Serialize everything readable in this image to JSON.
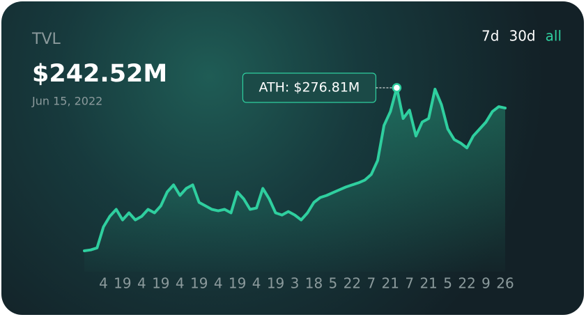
{
  "chart_data": {
    "type": "area",
    "title": "TVL",
    "current_value": "$242.52M",
    "date": "Jun 15, 2022",
    "range_options": [
      "7d",
      "30d",
      "all"
    ],
    "active_range": "all",
    "annotation": "ATH: $276.81M",
    "color": "#2fcf9f",
    "categories": [
      null,
      null,
      null,
      "4",
      null,
      null,
      "19",
      null,
      null,
      "4",
      null,
      null,
      "19",
      null,
      null,
      "4",
      null,
      null,
      "19",
      null,
      null,
      "4",
      null,
      null,
      "19",
      null,
      null,
      "4",
      null,
      null,
      "19",
      null,
      null,
      "3",
      null,
      null,
      "18",
      null,
      null,
      "5",
      null,
      null,
      "22",
      null,
      null,
      "7",
      null,
      null,
      "21",
      null,
      null,
      "7",
      null,
      null,
      "21",
      null,
      null,
      "5",
      null,
      null,
      "22",
      null,
      null,
      "9",
      null,
      null,
      "26"
    ],
    "values": [
      1,
      2.5,
      6.0,
      41.5,
      59.3,
      71.1,
      53.3,
      65.2,
      53.3,
      59.3,
      71.1,
      65.2,
      77.0,
      100.6,
      112.5,
      94.7,
      106.6,
      112.5,
      82.9,
      77.0,
      71.1,
      68.7,
      71.1,
      65.2,
      100.6,
      88.8,
      71.1,
      73.4,
      106.6,
      88.8,
      65.2,
      61.6,
      67.5,
      61.6,
      53.3,
      65.2,
      82.9,
      91.2,
      94.7,
      99.5,
      104.2,
      108.9,
      112.5,
      116.0,
      120.7,
      130.2,
      153.9,
      213.0,
      236.6,
      276.81,
      224.8,
      239.0,
      195.2,
      218.9,
      224.8,
      274.5,
      248.4,
      207.1,
      189.3,
      183.4,
      175.1,
      195.2,
      207.1,
      218.9,
      236.6,
      244.9,
      242.52
    ]
  }
}
